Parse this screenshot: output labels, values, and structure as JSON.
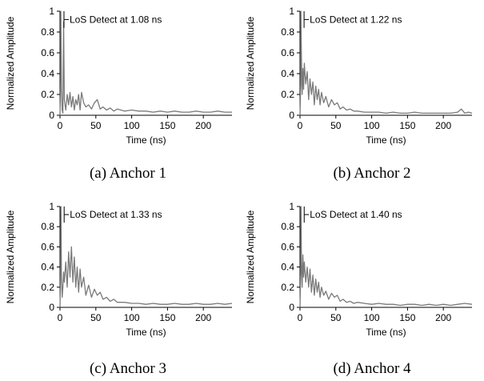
{
  "chart_data": [
    {
      "type": "line",
      "caption": "(a) Anchor 1",
      "xlabel": "Time (ns)",
      "ylabel": "Normalized Amplitude",
      "xlim": [
        0,
        240
      ],
      "ylim": [
        0,
        1
      ],
      "xticks": [
        "0",
        "50",
        "100",
        "150",
        "200"
      ],
      "yticks": [
        "0",
        "0.2",
        "0.4",
        "0.6",
        "0.8",
        "1"
      ],
      "annotation": {
        "text": "LoS Detect at 1.08 ns",
        "x": 1.08
      },
      "x": [
        0,
        1,
        1.08,
        2,
        3,
        4,
        5,
        6,
        8,
        10,
        12,
        14,
        16,
        18,
        20,
        22,
        24,
        26,
        28,
        30,
        33,
        36,
        40,
        44,
        48,
        52,
        56,
        60,
        65,
        70,
        75,
        80,
        90,
        100,
        110,
        120,
        130,
        140,
        150,
        160,
        170,
        180,
        190,
        200,
        210,
        220,
        230,
        240
      ],
      "y": [
        0.0,
        0.35,
        1.0,
        0.25,
        0.05,
        0.02,
        0.9,
        0.15,
        0.05,
        0.2,
        0.1,
        0.22,
        0.08,
        0.18,
        0.05,
        0.15,
        0.1,
        0.2,
        0.05,
        0.22,
        0.12,
        0.08,
        0.1,
        0.06,
        0.12,
        0.15,
        0.06,
        0.08,
        0.05,
        0.07,
        0.04,
        0.06,
        0.04,
        0.05,
        0.04,
        0.04,
        0.03,
        0.04,
        0.03,
        0.04,
        0.03,
        0.03,
        0.04,
        0.03,
        0.03,
        0.04,
        0.03,
        0.03
      ]
    },
    {
      "type": "line",
      "caption": "(b) Anchor 2",
      "xlabel": "Time (ns)",
      "ylabel": "Normalized Amplitude",
      "xlim": [
        0,
        240
      ],
      "ylim": [
        0,
        1
      ],
      "xticks": [
        "0",
        "50",
        "100",
        "150",
        "200"
      ],
      "yticks": [
        "0",
        "0.2",
        "0.4",
        "0.6",
        "0.8",
        "1"
      ],
      "annotation": {
        "text": "LoS Detect at 1.22 ns",
        "x": 1.22
      },
      "x": [
        0,
        1,
        1.22,
        2,
        3,
        4,
        5,
        6,
        8,
        10,
        12,
        14,
        16,
        18,
        20,
        22,
        24,
        26,
        28,
        30,
        33,
        36,
        40,
        44,
        48,
        52,
        56,
        60,
        65,
        70,
        75,
        80,
        90,
        100,
        110,
        120,
        130,
        140,
        150,
        160,
        170,
        180,
        190,
        200,
        210,
        220,
        225,
        230,
        235,
        240
      ],
      "y": [
        0.0,
        0.3,
        1.0,
        0.55,
        0.2,
        0.45,
        0.25,
        0.5,
        0.3,
        0.42,
        0.15,
        0.35,
        0.2,
        0.32,
        0.1,
        0.28,
        0.15,
        0.25,
        0.1,
        0.22,
        0.12,
        0.18,
        0.08,
        0.15,
        0.1,
        0.12,
        0.06,
        0.08,
        0.05,
        0.06,
        0.04,
        0.04,
        0.03,
        0.03,
        0.03,
        0.02,
        0.03,
        0.02,
        0.02,
        0.03,
        0.02,
        0.02,
        0.02,
        0.02,
        0.02,
        0.03,
        0.06,
        0.02,
        0.03,
        0.02
      ]
    },
    {
      "type": "line",
      "caption": "(c) Anchor 3",
      "xlabel": "Time (ns)",
      "ylabel": "Normalized Amplitude",
      "xlim": [
        0,
        240
      ],
      "ylim": [
        0,
        1
      ],
      "xticks": [
        "0",
        "50",
        "100",
        "150",
        "200"
      ],
      "yticks": [
        "0",
        "0.2",
        "0.4",
        "0.6",
        "0.8",
        "1"
      ],
      "annotation": {
        "text": "LoS Detect at 1.33 ns",
        "x": 1.33
      },
      "x": [
        0,
        1,
        1.33,
        2,
        3,
        4,
        5,
        6,
        8,
        10,
        12,
        14,
        16,
        18,
        20,
        22,
        24,
        26,
        28,
        30,
        33,
        36,
        40,
        44,
        48,
        52,
        56,
        60,
        65,
        70,
        75,
        80,
        90,
        100,
        110,
        120,
        130,
        140,
        150,
        160,
        170,
        180,
        190,
        200,
        210,
        220,
        230,
        240
      ],
      "y": [
        0.0,
        0.4,
        1.0,
        0.3,
        0.1,
        0.2,
        0.35,
        0.25,
        0.45,
        0.2,
        0.55,
        0.3,
        0.6,
        0.25,
        0.5,
        0.2,
        0.4,
        0.15,
        0.38,
        0.2,
        0.3,
        0.12,
        0.22,
        0.1,
        0.18,
        0.12,
        0.15,
        0.08,
        0.1,
        0.06,
        0.08,
        0.05,
        0.05,
        0.04,
        0.04,
        0.03,
        0.04,
        0.03,
        0.03,
        0.04,
        0.03,
        0.03,
        0.04,
        0.03,
        0.03,
        0.04,
        0.03,
        0.04
      ]
    },
    {
      "type": "line",
      "caption": "(d) Anchor 4",
      "xlabel": "Time (ns)",
      "ylabel": "Normalized Amplitude",
      "xlim": [
        0,
        240
      ],
      "ylim": [
        0,
        1
      ],
      "xticks": [
        "0",
        "50",
        "100",
        "150",
        "200"
      ],
      "yticks": [
        "0",
        "0.2",
        "0.4",
        "0.6",
        "0.8",
        "1"
      ],
      "annotation": {
        "text": "LoS Detect at 1.40 ns",
        "x": 1.4
      },
      "x": [
        0,
        1,
        1.4,
        2,
        3,
        4,
        5,
        6,
        8,
        10,
        12,
        14,
        16,
        18,
        20,
        22,
        24,
        26,
        28,
        30,
        33,
        36,
        40,
        44,
        48,
        52,
        56,
        60,
        65,
        70,
        75,
        80,
        90,
        100,
        110,
        120,
        130,
        140,
        150,
        160,
        170,
        180,
        190,
        200,
        210,
        220,
        230,
        240
      ],
      "y": [
        0.0,
        0.35,
        1.0,
        0.45,
        0.2,
        0.52,
        0.3,
        0.45,
        0.25,
        0.4,
        0.2,
        0.38,
        0.15,
        0.32,
        0.12,
        0.28,
        0.15,
        0.25,
        0.1,
        0.2,
        0.12,
        0.16,
        0.08,
        0.14,
        0.1,
        0.12,
        0.06,
        0.08,
        0.05,
        0.06,
        0.04,
        0.05,
        0.04,
        0.03,
        0.04,
        0.03,
        0.03,
        0.02,
        0.03,
        0.03,
        0.02,
        0.03,
        0.02,
        0.03,
        0.02,
        0.03,
        0.04,
        0.03
      ]
    }
  ]
}
